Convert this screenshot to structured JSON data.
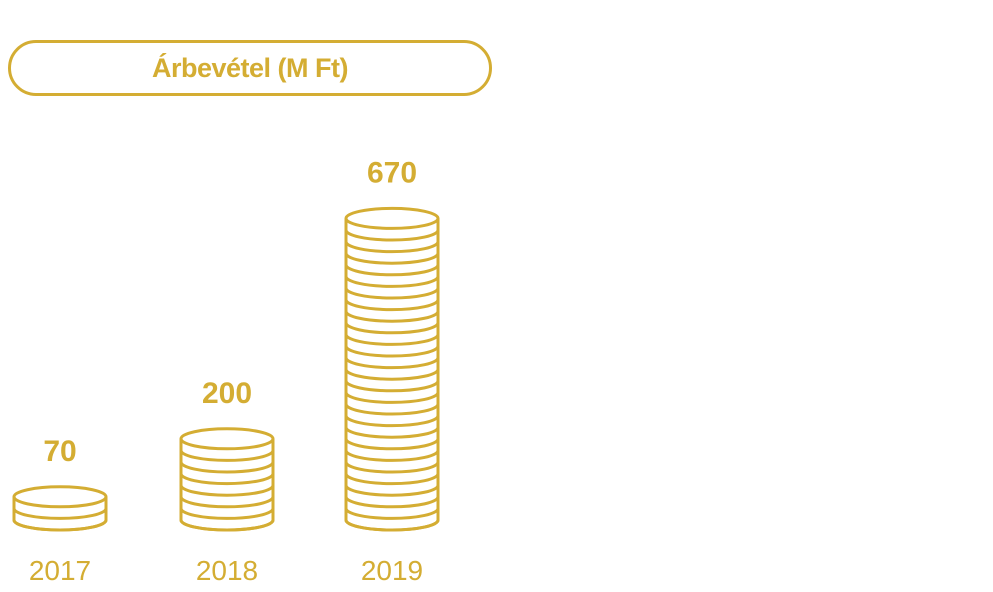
{
  "colors": {
    "accent": "#d4ad33",
    "background": "#ffffff"
  },
  "chart_data": {
    "type": "bar",
    "title": "Árbevétel (M Ft)",
    "categories": [
      "2017",
      "2018",
      "2019"
    ],
    "values": [
      70,
      200,
      670
    ],
    "value_labels": [
      "70",
      "200",
      "670"
    ],
    "bar_style": "stacked coins",
    "xlabel": "",
    "ylabel": "",
    "grid": false
  }
}
